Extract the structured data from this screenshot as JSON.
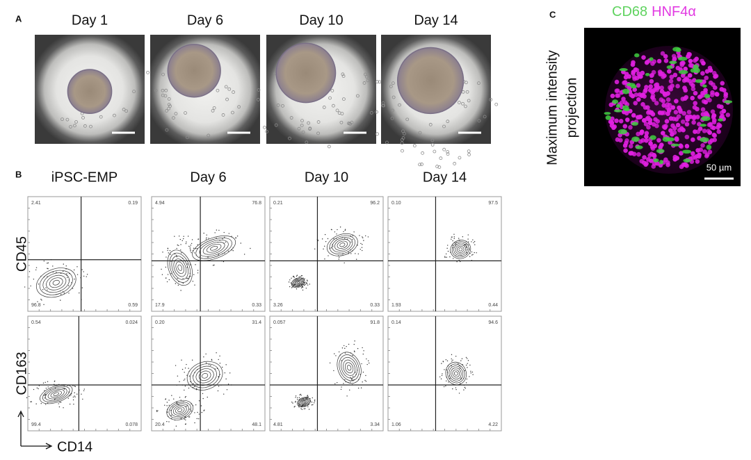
{
  "panel_a": {
    "label": "A",
    "days": [
      "Day 1",
      "Day 6",
      "Day 10",
      "Day 14"
    ]
  },
  "panel_b": {
    "label": "B",
    "columns": [
      "iPSC-EMP",
      "Day 6",
      "Day 10",
      "Day 14"
    ],
    "x_axis": "CD14",
    "rows": [
      {
        "marker": "CD45",
        "plots": [
          {
            "top_left": "2.41",
            "top_right": "0.19",
            "bottom_left": "96.8",
            "bottom_right": "0.59"
          },
          {
            "top_left": "4.94",
            "top_right": "76.8",
            "bottom_left": "17.9",
            "bottom_right": "0.33"
          },
          {
            "top_left": "0.21",
            "top_right": "96.2",
            "bottom_left": "3.26",
            "bottom_right": "0.33"
          },
          {
            "top_left": "0.10",
            "top_right": "97.5",
            "bottom_left": "1.93",
            "bottom_right": "0.44"
          }
        ]
      },
      {
        "marker": "CD163",
        "plots": [
          {
            "top_left": "0.54",
            "top_right": "0.024",
            "bottom_left": "99.4",
            "bottom_right": "0.078"
          },
          {
            "top_left": "0.20",
            "top_right": "31.4",
            "bottom_left": "20.4",
            "bottom_right": "48.1"
          },
          {
            "top_left": "0.057",
            "top_right": "91.8",
            "bottom_left": "4.81",
            "bottom_right": "3.34"
          },
          {
            "top_left": "0.14",
            "top_right": "94.6",
            "bottom_left": "1.06",
            "bottom_right": "4.22"
          }
        ]
      }
    ]
  },
  "panel_c": {
    "label": "C",
    "stains": [
      "CD68",
      "HNF4α"
    ],
    "caption": [
      "Maximum intensity",
      "projection"
    ],
    "scale_bar": "50 µm"
  }
}
